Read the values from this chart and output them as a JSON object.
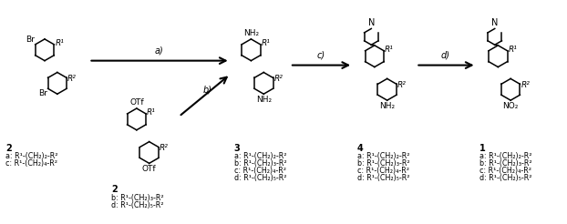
{
  "fig_width": 6.22,
  "fig_height": 2.46,
  "dpi": 100,
  "bg_color": "#ffffff",
  "structures": {
    "comp2a_label": "2",
    "comp2a_sub": "a: R¹-(CH₂)₂-R²\nc: R¹-(CH₂)₄-R²",
    "comp2b_label": "2",
    "comp2b_sub": "b: R¹-(CH₂)₃-R²\nd: R¹-(CH₂)₅-R²",
    "comp3_label": "3",
    "comp3_sub": "a: R¹-(CH₂)₂-R²\nb: R¹-(CH₂)₃-R²\nc: R¹-(CH₂)₄-R²\nd: R¹-(CH₂)₅-R²",
    "comp4_label": "4",
    "comp4_sub": "a: R¹-(CH₂)₂-R²\nb: R¹-(CH₂)₃-R²\nc: R¹-(CH₂)₄-R²\nd: R¹-(CH₂)₅-R²",
    "comp1_label": "1",
    "comp1_sub": "a: R¹-(CH₂)₂-R²\nb: R¹-(CH₂)₃-R²\nc: R¹-(CH₂)₄-R²\nd: R¹-(CH₂)₅-R²"
  }
}
